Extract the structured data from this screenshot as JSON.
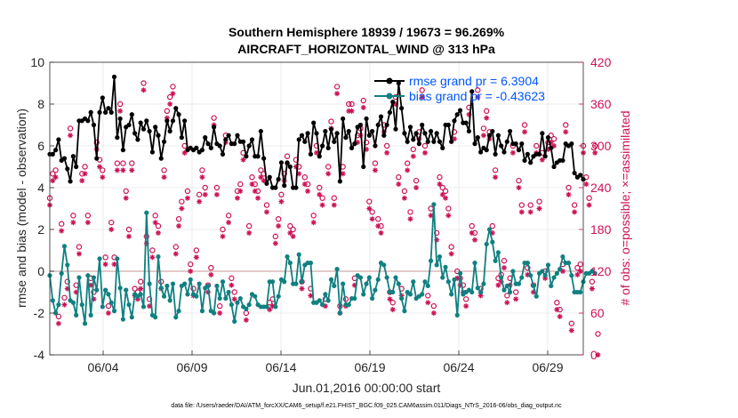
{
  "chart_data": {
    "type": "line",
    "title": "Southern Hemisphere 18939 / 19673 = 96.269%",
    "subtitle": "AIRCRAFT_HORIZONTAL_WIND @ 313 hPa",
    "xlabel": "Jun.01,2016 00:00:00 start",
    "ylabel": "rmse and bias (model - observation)",
    "y2label": "# of obs: o=possible; ×=assimilated",
    "footnote": "data file: /Users/raeder/DAI/ATM_forcXX/CAM6_setup/f.e21.FHIST_BGC.f09_025.CAM6assim.011/Diags_NTrS_2016-06/obs_diag_output.nc",
    "x_ticks": [
      "06/04",
      "06/09",
      "06/14",
      "06/19",
      "06/24",
      "06/29"
    ],
    "x_tick_days": [
      4,
      9,
      14,
      19,
      24,
      29
    ],
    "xlim": [
      1,
      31
    ],
    "ylim": [
      -4,
      10
    ],
    "y_ticks": [
      "-4",
      "-2",
      "0",
      "2",
      "4",
      "6",
      "8",
      "10"
    ],
    "y2lim": [
      0,
      420
    ],
    "y2_ticks": [
      "0",
      "60",
      "120",
      "180",
      "240",
      "300",
      "360",
      "420"
    ],
    "grid": true,
    "legend_position": "top-right",
    "colors": {
      "rmse": "#000000",
      "bias": "#108080",
      "obs": "#cc1155",
      "zero": "#d8b8b8",
      "legend_text": "#0055ff"
    },
    "series": [
      {
        "name": "rmse grand pr = 6.3904",
        "values": [
          5.6,
          5.6,
          5.8,
          6.3,
          5.3,
          5.4,
          4.9,
          4.3,
          5.5,
          5.0,
          7.2,
          7.2,
          7.3,
          7.2,
          7.6,
          7.0,
          5.4,
          7.6,
          8.3,
          7.6,
          7.8,
          7.6,
          9.3,
          6.4,
          7.3,
          5.8,
          6.9,
          7.0,
          7.5,
          6.6,
          6.3,
          7.1,
          6.8,
          7.2,
          6.7,
          5.7,
          6.9,
          6.5,
          5.4,
          6.2,
          7.2,
          6.7,
          7.2,
          7.8,
          7.5,
          6.4,
          7.2,
          5.8,
          5.9,
          5.8,
          5.9,
          5.7,
          5.8,
          6.4,
          6.1,
          5.9,
          6.9,
          6.1,
          6.0,
          5.6,
          6.3,
          6.5,
          6.1,
          6.1,
          6.5,
          6.2,
          6.2,
          5.5,
          6.0,
          6.3,
          5.5,
          5.5,
          6.7,
          5.4,
          4.2,
          4.5,
          4.0,
          4.0,
          4.4,
          5.2,
          4.1,
          5.2,
          5.0,
          4.0,
          4.0,
          6.3,
          6.5,
          6.2,
          6.6,
          5.6,
          7.1,
          6.6,
          5.5,
          6.0,
          6.7,
          5.9,
          6.8,
          6.2,
          6.6,
          4.3,
          7.3,
          6.4,
          6.7,
          5.9,
          6.1,
          6.9,
          7.0,
          5.0,
          7.3,
          6.5,
          6.7,
          6.0,
          7.0,
          7.4,
          6.5,
          7.0,
          7.6,
          8.1,
          6.8,
          9.0,
          7.8,
          6.6,
          6.2,
          6.9,
          6.3,
          6.6,
          6.1,
          7.0,
          6.6,
          6.2,
          6.7,
          6.2,
          6.6,
          6.2,
          5.9,
          7.0,
          7.0,
          6.2,
          7.2,
          7.5,
          7.7,
          7.1,
          7.1,
          6.7,
          8.6,
          6.1,
          6.4,
          5.7,
          5.9,
          5.8,
          6.5,
          6.7,
          5.6,
          6.5,
          6.0,
          5.7,
          6.2,
          6.7,
          6.1,
          6.1,
          5.8,
          6.1,
          5.3,
          5.6,
          5.2,
          5.5,
          5.6,
          5.6,
          6.6,
          5.5,
          6.4,
          5.9,
          5.0,
          5.2,
          5.3,
          5.3,
          6.1,
          6.0,
          6.1,
          4.7,
          4.5,
          4.6,
          4.4
        ]
      },
      {
        "name": "bias grand pr = -0.43623",
        "values": [
          -0.2,
          -1.4,
          -2.0,
          -1.6,
          -0.1,
          1.2,
          0.3,
          -1.4,
          -1.5,
          -2.1,
          -0.3,
          -1.6,
          -2.5,
          -0.2,
          -2.1,
          -0.3,
          -0.9,
          0.6,
          -1.7,
          -0.9,
          -1.1,
          -1.5,
          -1.9,
          0.6,
          -0.8,
          -2.3,
          -0.9,
          -1.6,
          -2.2,
          -1.1,
          -1.2,
          -1.1,
          -1.7,
          2.8,
          -0.6,
          -2.1,
          -2.2,
          0.7,
          -0.8,
          -1.2,
          -0.7,
          -1.4,
          -0.6,
          -2.2,
          -1.9,
          -0.7,
          -0.6,
          -1.1,
          -0.4,
          -1.1,
          -1.2,
          -0.6,
          -1.9,
          -0.8,
          -0.7,
          -1.9,
          -2.0,
          -0.7,
          -1.3,
          -0.5,
          -1.3,
          -1.0,
          -1.6,
          -2.4,
          -1.5,
          -1.3,
          -1.7,
          -1.8,
          -1.6,
          -1.1,
          -1.2,
          -1.6,
          -1.7,
          -1.7,
          -1.7,
          -0.5,
          -0.5,
          -1.7,
          -1.2,
          -0.4,
          -0.5,
          0.7,
          0.4,
          -0.6,
          -0.6,
          0.8,
          -0.5,
          0.3,
          0.4,
          0.4,
          -1.5,
          -1.5,
          -1.4,
          -1.6,
          -1.1,
          -1.4,
          -0.4,
          -0.7,
          0.1,
          -2.0,
          -0.6,
          -1.6,
          -1.6,
          -1.3,
          -1.3,
          -0.2,
          -0.3,
          -1.1,
          -0.6,
          -0.3,
          -1.3,
          -0.9,
          -0.4,
          0.4,
          0.3,
          -0.3,
          -1.0,
          -1.0,
          -0.3,
          -0.6,
          -1.3,
          -1.9,
          -1.0,
          -1.1,
          -0.5,
          -1.3,
          -1.2,
          -1.1,
          -0.5,
          -0.7,
          0.5,
          3.2,
          0.3,
          0.7,
          -0.3,
          0.2,
          -0.5,
          -1.1,
          -0.4,
          -2.1,
          -0.1,
          -1.1,
          -1.0,
          -0.9,
          -1.0,
          0.4,
          -0.8,
          -1.0,
          -0.6,
          1.3,
          2.0,
          1.4,
          0.5,
          0.9,
          -0.3,
          -0.9,
          -0.7,
          -1.0,
          0.0,
          -0.6,
          -0.6,
          -0.3,
          0.4,
          0.4,
          -0.2,
          -0.7,
          -1.2,
          -0.1,
          0.0,
          -0.2,
          0.3,
          -0.7,
          -0.3,
          -0.1,
          0.1,
          0.7,
          0.4,
          0.4,
          -0.2,
          -1.0,
          -1.0,
          -1.0,
          -0.5,
          -0.1,
          -0.1,
          0.0,
          -0.1
        ]
      }
    ],
    "obs_possible": [
      225,
      260,
      265,
      55,
      188,
      82,
      105,
      325,
      200,
      100,
      155,
      260,
      270,
      200,
      110,
      90,
      305,
      280,
      265,
      140,
      70,
      190,
      140,
      275,
      360,
      275,
      235,
      180,
      275,
      95,
      90,
      105,
      390,
      170,
      80,
      150,
      200,
      185,
      105,
      265,
      350,
      370,
      385,
      155,
      195,
      220,
      300,
      235,
      130,
      95,
      150,
      230,
      265,
      240,
      100,
      125,
      340,
      240,
      70,
      180,
      315,
      200,
      110,
      90,
      235,
      245,
      290,
      60,
      185,
      255,
      245,
      235,
      265,
      260,
      215,
      75,
      80,
      170,
      195,
      230,
      260,
      285,
      185,
      180,
      280,
      270,
      105,
      255,
      245,
      95,
      200,
      300,
      240,
      225,
      80,
      270,
      335,
      225,
      385,
      70,
      270,
      80,
      360,
      360,
      110,
      315,
      325,
      365,
      305,
      220,
      205,
      275,
      195,
      185,
      330,
      300,
      90,
      75,
      370,
      255,
      95,
      235,
      275,
      205,
      295,
      250,
      320,
      380,
      300,
      85,
      210,
      70,
      175,
      255,
      240,
      235,
      210,
      155,
      320,
      120,
      110,
      100,
      80,
      355,
      185,
      175,
      380,
      95,
      325,
      350,
      320,
      185,
      265,
      110,
      115,
      135,
      85,
      110,
      300,
      90,
      250,
      215,
      330,
      125,
      215,
      100,
      300,
      220,
      290,
      120,
      305,
      315,
      310,
      75,
      65,
      130,
      330,
      240,
      45,
      215,
      125,
      130,
      300,
      255,
      225,
      105,
      300,
      30
    ],
    "obs_assimilated": [
      215,
      250,
      255,
      45,
      178,
      72,
      95,
      315,
      190,
      90,
      145,
      250,
      260,
      190,
      100,
      80,
      295,
      270,
      255,
      130,
      60,
      180,
      130,
      265,
      350,
      265,
      225,
      170,
      265,
      85,
      80,
      95,
      380,
      160,
      70,
      140,
      190,
      175,
      95,
      255,
      340,
      360,
      375,
      145,
      185,
      210,
      290,
      225,
      120,
      85,
      140,
      220,
      255,
      230,
      90,
      115,
      330,
      230,
      60,
      170,
      305,
      190,
      100,
      80,
      225,
      235,
      280,
      50,
      175,
      245,
      235,
      225,
      255,
      250,
      205,
      65,
      70,
      160,
      185,
      220,
      250,
      275,
      175,
      170,
      270,
      260,
      95,
      245,
      235,
      85,
      190,
      290,
      230,
      215,
      70,
      260,
      325,
      215,
      375,
      60,
      260,
      70,
      350,
      350,
      100,
      305,
      315,
      355,
      295,
      210,
      195,
      265,
      185,
      175,
      320,
      290,
      80,
      65,
      360,
      245,
      85,
      225,
      265,
      195,
      285,
      240,
      310,
      370,
      290,
      75,
      200,
      60,
      165,
      245,
      230,
      225,
      200,
      145,
      310,
      110,
      100,
      90,
      70,
      345,
      175,
      165,
      370,
      85,
      315,
      340,
      310,
      175,
      255,
      100,
      105,
      125,
      75,
      100,
      290,
      80,
      240,
      205,
      320,
      115,
      205,
      90,
      290,
      210,
      280,
      110,
      295,
      305,
      300,
      65,
      55,
      120,
      320,
      230,
      35,
      205,
      115,
      120,
      290,
      245,
      215,
      95,
      290,
      0
    ]
  }
}
